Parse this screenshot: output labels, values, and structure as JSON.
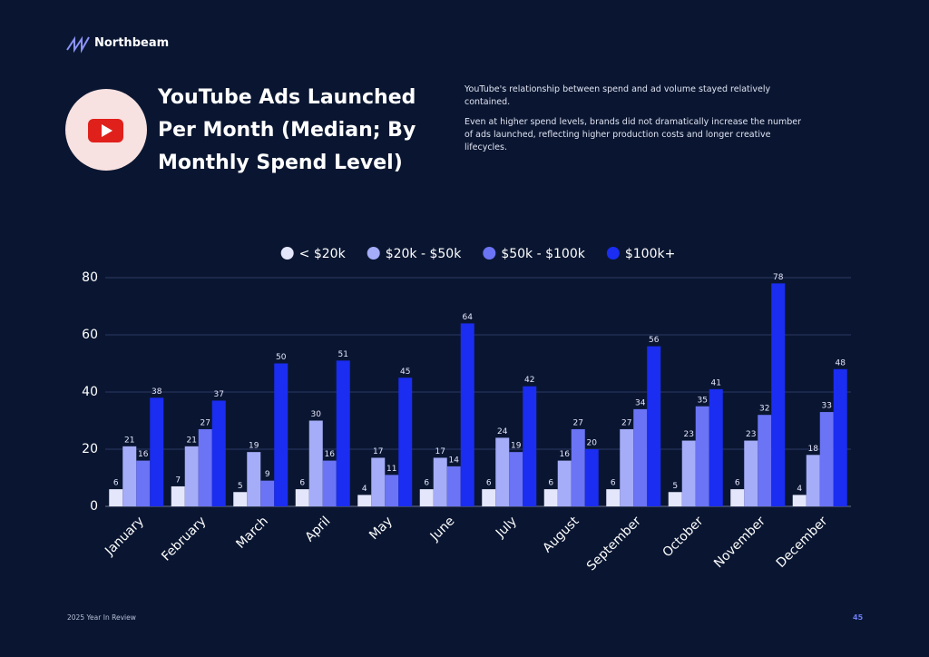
{
  "brand": "Northbeam",
  "header": {
    "title": "YouTube Ads Launched Per Month (Median; By Monthly Spend Level)",
    "paragraphs": [
      "YouTube's relationship between spend and ad volume stayed relatively contained.",
      "Even at higher spend levels, brands did not dramatically increase the number of ads launched, reflecting higher production costs and longer creative lifecycles."
    ]
  },
  "footer": {
    "left": "2025 Year In Review",
    "page": "45"
  },
  "chart_data": {
    "type": "bar",
    "categories": [
      "January",
      "February",
      "March",
      "April",
      "May",
      "June",
      "July",
      "August",
      "September",
      "October",
      "November",
      "December"
    ],
    "series": [
      {
        "name": "< $20k",
        "color": "#e4e6fb",
        "values": [
          6,
          7,
          5,
          6,
          4,
          6,
          6,
          6,
          6,
          5,
          6,
          4
        ]
      },
      {
        "name": "$20k - $50k",
        "color": "#a5acf8",
        "values": [
          21,
          21,
          19,
          30,
          17,
          17,
          24,
          16,
          27,
          23,
          23,
          18
        ]
      },
      {
        "name": "$50k - $100k",
        "color": "#6b74f4",
        "values": [
          16,
          27,
          9,
          16,
          11,
          14,
          19,
          27,
          34,
          35,
          32,
          33
        ]
      },
      {
        "name": "$100k+",
        "color": "#1a2df0",
        "values": [
          38,
          37,
          50,
          51,
          45,
          64,
          42,
          20,
          56,
          41,
          78,
          48
        ]
      }
    ],
    "ylim": [
      0,
      80
    ],
    "yticks": [
      0,
      20,
      40,
      60,
      80
    ],
    "grid": true,
    "legend": "top"
  }
}
